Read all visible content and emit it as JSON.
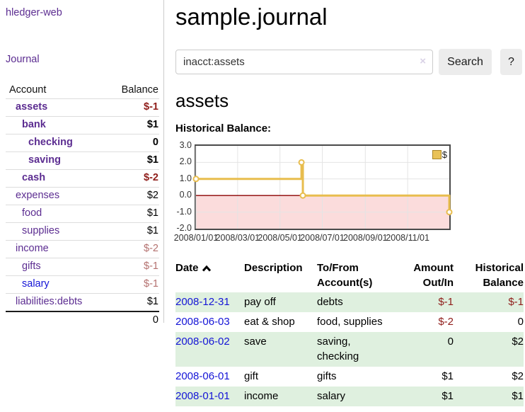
{
  "brand": "hledger-web",
  "sidebar": {
    "journal_link": "Journal",
    "accounts": {
      "header": {
        "account": "Account",
        "balance": "Balance"
      },
      "rows": [
        {
          "name": "assets",
          "balance": "$-1"
        },
        {
          "name": "bank",
          "balance": "$1"
        },
        {
          "name": "checking",
          "balance": "0"
        },
        {
          "name": "saving",
          "balance": "$1"
        },
        {
          "name": "cash",
          "balance": "$-2"
        },
        {
          "name": "expenses",
          "balance": "$2"
        },
        {
          "name": "food",
          "balance": "$1"
        },
        {
          "name": "supplies",
          "balance": "$1"
        },
        {
          "name": "income",
          "balance": "$-2"
        },
        {
          "name": "gifts",
          "balance": "$-1"
        },
        {
          "name": "salary",
          "balance": "$-1"
        },
        {
          "name": "liabilities:debts",
          "balance": "$1"
        }
      ],
      "total": "0"
    }
  },
  "header": {
    "title": "sample.journal",
    "search": {
      "value": "inacct:assets",
      "clear_icon": "×",
      "search_button": "Search",
      "help_button": "?"
    }
  },
  "account_page": {
    "heading": "assets",
    "chart_title": "Historical Balance:"
  },
  "chart_data": {
    "type": "line",
    "title": "Historical Balance:",
    "step": true,
    "legend_position": "top-right",
    "series": [
      {
        "name": "$",
        "color": "#e8bd4e",
        "points": [
          {
            "date": "2008-01-01",
            "day": 0,
            "value": 1
          },
          {
            "date": "2008-06-01",
            "day": 152,
            "value": 2
          },
          {
            "date": "2008-06-03",
            "day": 154,
            "value": 0
          },
          {
            "date": "2008-12-31",
            "day": 365,
            "value": -1
          }
        ]
      }
    ],
    "x_ticks": [
      {
        "label": "2008/01/01",
        "day": 0
      },
      {
        "label": "2008/03/01",
        "day": 60
      },
      {
        "label": "2008/05/01",
        "day": 121
      },
      {
        "label": "2008/07/01",
        "day": 182
      },
      {
        "label": "2008/09/01",
        "day": 244
      },
      {
        "label": "2008/11/01",
        "day": 305
      }
    ],
    "y_ticks": [
      "3.0",
      "2.0",
      "1.0",
      "0.0",
      "-1.0",
      "-2.0"
    ],
    "ylim": [
      -2,
      3
    ],
    "x_range_days": 365,
    "grid_y": [
      2,
      1,
      -1
    ],
    "grid_color": "#e4e4e4",
    "zero_line_color": "#8b0000",
    "negative_region_color": "#fbdcdc"
  },
  "register": {
    "headers": {
      "date": "Date",
      "description": "Description",
      "accounts": "To/From Account(s)",
      "amount": "Amount Out/In",
      "balance": "Historical Balance"
    },
    "rows": [
      {
        "date": "2008-12-31",
        "description": "pay off",
        "accounts": "debts",
        "amount": "$-1",
        "balance": "$-1"
      },
      {
        "date": "2008-06-03",
        "description": "eat & shop",
        "accounts": "food, supplies",
        "amount": "$-2",
        "balance": "0"
      },
      {
        "date": "2008-06-02",
        "description": "save",
        "accounts": "saving, checking",
        "amount": "0",
        "balance": "$2"
      },
      {
        "date": "2008-06-01",
        "description": "gift",
        "accounts": "gifts",
        "amount": "$1",
        "balance": "$2"
      },
      {
        "date": "2008-01-01",
        "description": "income",
        "accounts": "salary",
        "amount": "$1",
        "balance": "$1"
      }
    ]
  },
  "colors": {
    "link_purple": "#5c2d91",
    "link_blue": "#1414d6",
    "negative_strong": "#8f1d1a",
    "negative_muted": "#b4716f",
    "row_stripe_green": "#dff0df",
    "chart_line_gold": "#e8bd4e",
    "sidebar_divider": "#cccccc"
  }
}
